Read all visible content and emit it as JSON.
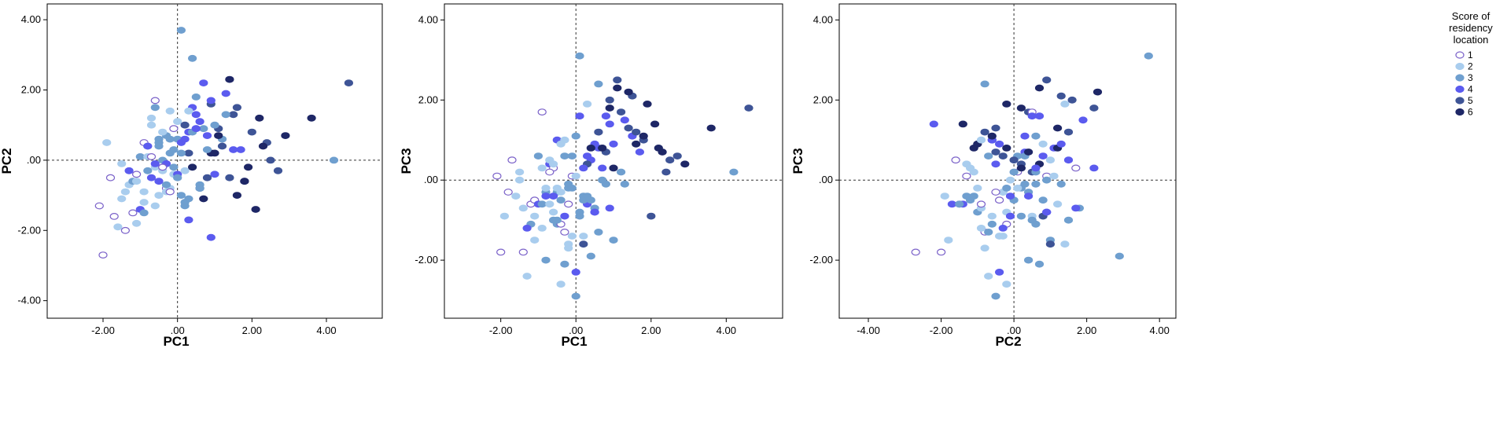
{
  "chart_data": [
    {
      "type": "scatter",
      "id": "pc1-pc2",
      "xlabel": "PC1",
      "ylabel": "PC2",
      "xlim": [
        -3.5,
        5.5
      ],
      "ylim": [
        -4.5,
        4.45
      ],
      "xticks": [
        -2.0,
        0.0,
        2.0,
        4.0
      ],
      "yticks": [
        -4.0,
        -2.0,
        0.0,
        2.0,
        4.0
      ],
      "xtick_labels": [
        "-2.00",
        ".00",
        "2.00",
        "4.00"
      ],
      "ytick_labels": [
        "-4.00",
        "-2.00",
        ".00",
        "2.00",
        "4.00"
      ],
      "reference_lines": {
        "x": 0,
        "y": 0
      },
      "grid": false,
      "x_source": "pc1",
      "y_source": "pc2"
    },
    {
      "type": "scatter",
      "id": "pc1-pc3",
      "xlabel": "PC1",
      "ylabel": "PC3",
      "xlim": [
        -3.5,
        5.5
      ],
      "ylim": [
        -3.45,
        4.4
      ],
      "xticks": [
        -2.0,
        0.0,
        2.0,
        4.0
      ],
      "yticks": [
        -2.0,
        0.0,
        2.0,
        4.0
      ],
      "xtick_labels": [
        "-2.00",
        ".00",
        "2.00",
        "4.00"
      ],
      "ytick_labels": [
        "-2.00",
        ".00",
        "2.00",
        "4.00"
      ],
      "reference_lines": {
        "x": 0,
        "y": 0
      },
      "grid": false,
      "x_source": "pc1",
      "y_source": "pc3"
    },
    {
      "type": "scatter",
      "id": "pc2-pc3",
      "xlabel": "PC2",
      "ylabel": "PC3",
      "xlim": [
        -4.8,
        4.45
      ],
      "ylim": [
        -3.45,
        4.4
      ],
      "xticks": [
        -4.0,
        -2.0,
        0.0,
        2.0,
        4.0
      ],
      "yticks": [
        -2.0,
        0.0,
        2.0,
        4.0
      ],
      "xtick_labels": [
        "-4.00",
        "-2.00",
        ".00",
        "2.00",
        "4.00"
      ],
      "ytick_labels": [
        "-2.00",
        ".00",
        "2.00",
        "4.00"
      ],
      "reference_lines": {
        "x": 0,
        "y": 0
      },
      "grid": false,
      "x_source": "pc2",
      "y_source": "pc3"
    }
  ],
  "observations": {
    "score": [
      1,
      2,
      3,
      4,
      5,
      6,
      3,
      2,
      1,
      4,
      5,
      6,
      2,
      3,
      4,
      3,
      2,
      1,
      5,
      6,
      4,
      3,
      2,
      3,
      1,
      4,
      5,
      2,
      3,
      6,
      4,
      3,
      2,
      1,
      3,
      4,
      5,
      6,
      2,
      3,
      3,
      4,
      2,
      1,
      5,
      3,
      4,
      6,
      2,
      3,
      4,
      5,
      3,
      2,
      1,
      3,
      4,
      6,
      5,
      2,
      3,
      3,
      2,
      4,
      1,
      5,
      6,
      3,
      4,
      2,
      3,
      1,
      4,
      5,
      2,
      3,
      6,
      4,
      3,
      2,
      4,
      3,
      5,
      2,
      1,
      6,
      3,
      4,
      2,
      3,
      5,
      4,
      3,
      2,
      6,
      1,
      3,
      4,
      5,
      2,
      3,
      4,
      2,
      3,
      1,
      5,
      6,
      4,
      3,
      2,
      3,
      4,
      1,
      2,
      5,
      3,
      6,
      4,
      3,
      2,
      4,
      3,
      2,
      5,
      1,
      3,
      6,
      4,
      2,
      3
    ],
    "pc1": [
      -1.2,
      -1.5,
      -0.5,
      0.4,
      1.2,
      2.1,
      -0.8,
      -1.9,
      -0.3,
      0.6,
      1.8,
      2.9,
      -1.1,
      -0.2,
      0.3,
      0.1,
      -0.6,
      -1.4,
      1.5,
      0.9,
      0.7,
      -0.4,
      -0.9,
      0.2,
      -0.1,
      1.0,
      2.4,
      -1.3,
      0.5,
      3.6,
      -0.7,
      0.8,
      -0.2,
      -2.0,
      -0.5,
      1.3,
      1.1,
      1.6,
      -0.4,
      -1.0,
      0.0,
      0.3,
      -1.6,
      -0.9,
      0.6,
      0.4,
      -0.3,
      2.2,
      -0.7,
      -1.2,
      1.7,
      0.9,
      0.2,
      -0.1,
      -0.6,
      -0.3,
      0.5,
      1.9,
      2.7,
      -0.8,
      0.1,
      0.7,
      -1.4,
      -0.5,
      -1.1,
      0.3,
      1.4,
      -0.6,
      0.9,
      -0.2,
      1.2,
      -1.7,
      0.1,
      2.0,
      -0.4,
      -0.8,
      0.4,
      -1.0,
      0.6,
      0.0,
      1.5,
      0.3,
      0.8,
      -1.5,
      -0.4,
      1.1,
      -0.9,
      0.2,
      -0.5,
      1.0,
      1.4,
      0.5,
      -0.1,
      -1.1,
      0.7,
      -0.7,
      0.4,
      -1.3,
      2.5,
      -0.3,
      -0.2,
      0.9,
      -0.6,
      0.6,
      -1.8,
      0.2,
      1.8,
      -0.8,
      0.1,
      -0.4,
      1.3,
      0.0,
      -0.2,
      -0.9,
      1.6,
      -0.5,
      2.3,
      0.8,
      -0.1,
      -0.7,
      0.5,
      -0.3,
      0.2,
      4.6,
      -2.1,
      0.0,
      1.0,
      -0.6,
      0.3,
      4.2
    ],
    "pc2": [
      -1.5,
      -1.1,
      0.6,
      1.5,
      0.4,
      -1.4,
      -0.3,
      0.5,
      -0.8,
      1.1,
      -0.6,
      0.7,
      -1.8,
      0.2,
      0.8,
      3.7,
      -0.2,
      -2.0,
      1.3,
      0.2,
      2.2,
      0.0,
      -0.9,
      -1.3,
      0.9,
      -0.4,
      0.5,
      -0.7,
      1.8,
      1.2,
      -0.5,
      0.3,
      1.4,
      -2.7,
      0.4,
      1.9,
      0.9,
      -1.0,
      -0.2,
      0.1,
      0.6,
      -1.7,
      -1.9,
      0.5,
      -0.8,
      2.9,
      -0.1,
      1.2,
      1.0,
      -0.6,
      0.3,
      1.6,
      -1.2,
      -0.4,
      1.7,
      0.7,
      1.3,
      -0.2,
      -0.3,
      0.1,
      -1.0,
      0.9,
      -0.9,
      -0.6,
      -0.4,
      0.2,
      2.3,
      1.5,
      -2.2,
      -0.8,
      0.6,
      -1.6,
      0.5,
      0.8,
      -0.3,
      0.4,
      -0.2,
      -1.4,
      -0.7,
      1.1,
      0.3,
      -1.1,
      -0.5,
      -0.1,
      -0.2,
      0.7,
      -1.5,
      0.6,
      -1.0,
      1.0,
      -0.5,
      0.9,
      0.3,
      -0.6,
      -1.1,
      0.1,
      0.8,
      -0.3,
      0.0,
      -0.9,
      0.6,
      1.7,
      -1.3,
      -0.8,
      -0.5,
      1.0,
      -0.6,
      0.4,
      0.2,
      0.8,
      1.3,
      -0.4,
      -0.9,
      -1.2,
      1.5,
      0.5,
      0.4,
      0.7,
      -0.2,
      1.2,
      0.9,
      -0.7,
      -0.3,
      2.2,
      -1.3,
      -0.5,
      0.2,
      -0.1,
      1.4,
      0.0
    ],
    "pc3": [
      -0.6,
      0.2,
      -1.1,
      0.5,
      1.7,
      1.4,
      -0.3,
      -0.9,
      -1.3,
      0.8,
      1.0,
      0.4,
      -1.5,
      -0.2,
      0.6,
      3.1,
      -0.8,
      -1.8,
      2.1,
      1.8,
      0.3,
      -0.5,
      -1.2,
      -0.4,
      0.1,
      0.9,
      0.2,
      -2.4,
      -0.7,
      1.3,
      0.4,
      -0.1,
      -1.6,
      -1.8,
      -0.3,
      1.5,
      2.5,
      0.9,
      -2.6,
      0.6,
      1.1,
      -0.6,
      -0.4,
      1.7,
      1.2,
      -1.9,
      -0.9,
      0.8,
      0.5,
      -1.1,
      0.7,
      2.0,
      -0.5,
      -1.4,
      0.3,
      -2.1,
      0.9,
      1.9,
      0.6,
      -0.2,
      -0.8,
      0.0,
      -0.7,
      1.0,
      -0.5,
      0.4,
      2.2,
      -1.0,
      1.4,
      -1.7,
      0.2,
      0.5,
      1.6,
      -0.9,
      -0.3,
      -2.0,
      0.8,
      -0.6,
      -1.3,
      0.1,
      1.1,
      -0.4,
      0.7,
      0.0,
      -1.1,
      2.3,
      -0.6,
      0.3,
      -0.2,
      -1.5,
      1.3,
      -0.8,
      0.6,
      -0.9,
      0.8,
      0.2,
      -0.5,
      -1.2,
      0.5,
      1.0,
      -0.1,
      -0.7,
      0.4,
      2.4,
      -0.3,
      -1.6,
      1.1,
      -0.4,
      -0.9,
      0.9,
      -0.1,
      -2.3,
      -0.6,
      0.3,
      1.2,
      -1.0,
      0.7,
      1.6,
      -0.2,
      -0.6,
      -0.8,
      0.6,
      -1.4,
      1.8,
      0.1,
      -2.9,
      0.3,
      -0.4,
      1.9,
      0.2
    ]
  },
  "legend": {
    "title_lines": [
      "Score of",
      "residency",
      "location"
    ],
    "entries": [
      {
        "label": "1",
        "fill": "#ffffff",
        "stroke": "#7b62c9"
      },
      {
        "label": "2",
        "fill": "#a9cdee",
        "stroke": "#a9cdee"
      },
      {
        "label": "3",
        "fill": "#6f9fcf",
        "stroke": "#6f9fcf"
      },
      {
        "label": "4",
        "fill": "#5b5bef",
        "stroke": "#5b5bef"
      },
      {
        "label": "5",
        "fill": "#3e5496",
        "stroke": "#3e5496"
      },
      {
        "label": "6",
        "fill": "#1e2766",
        "stroke": "#1e2766"
      }
    ]
  }
}
